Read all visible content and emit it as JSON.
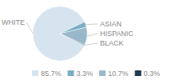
{
  "chart_data": {
    "type": "pie",
    "categories": [
      "WHITE",
      "ASIAN",
      "HISPANIC",
      "BLACK"
    ],
    "values": [
      85.7,
      3.3,
      10.7,
      0.3
    ],
    "value_labels": [
      "85.7%",
      "3.3%",
      "10.7%",
      "0.3%"
    ],
    "colors": [
      "#d6e4f0",
      "#7aafc5",
      "#9ab8cc",
      "#1e3a4f"
    ],
    "legend": "bottom"
  }
}
